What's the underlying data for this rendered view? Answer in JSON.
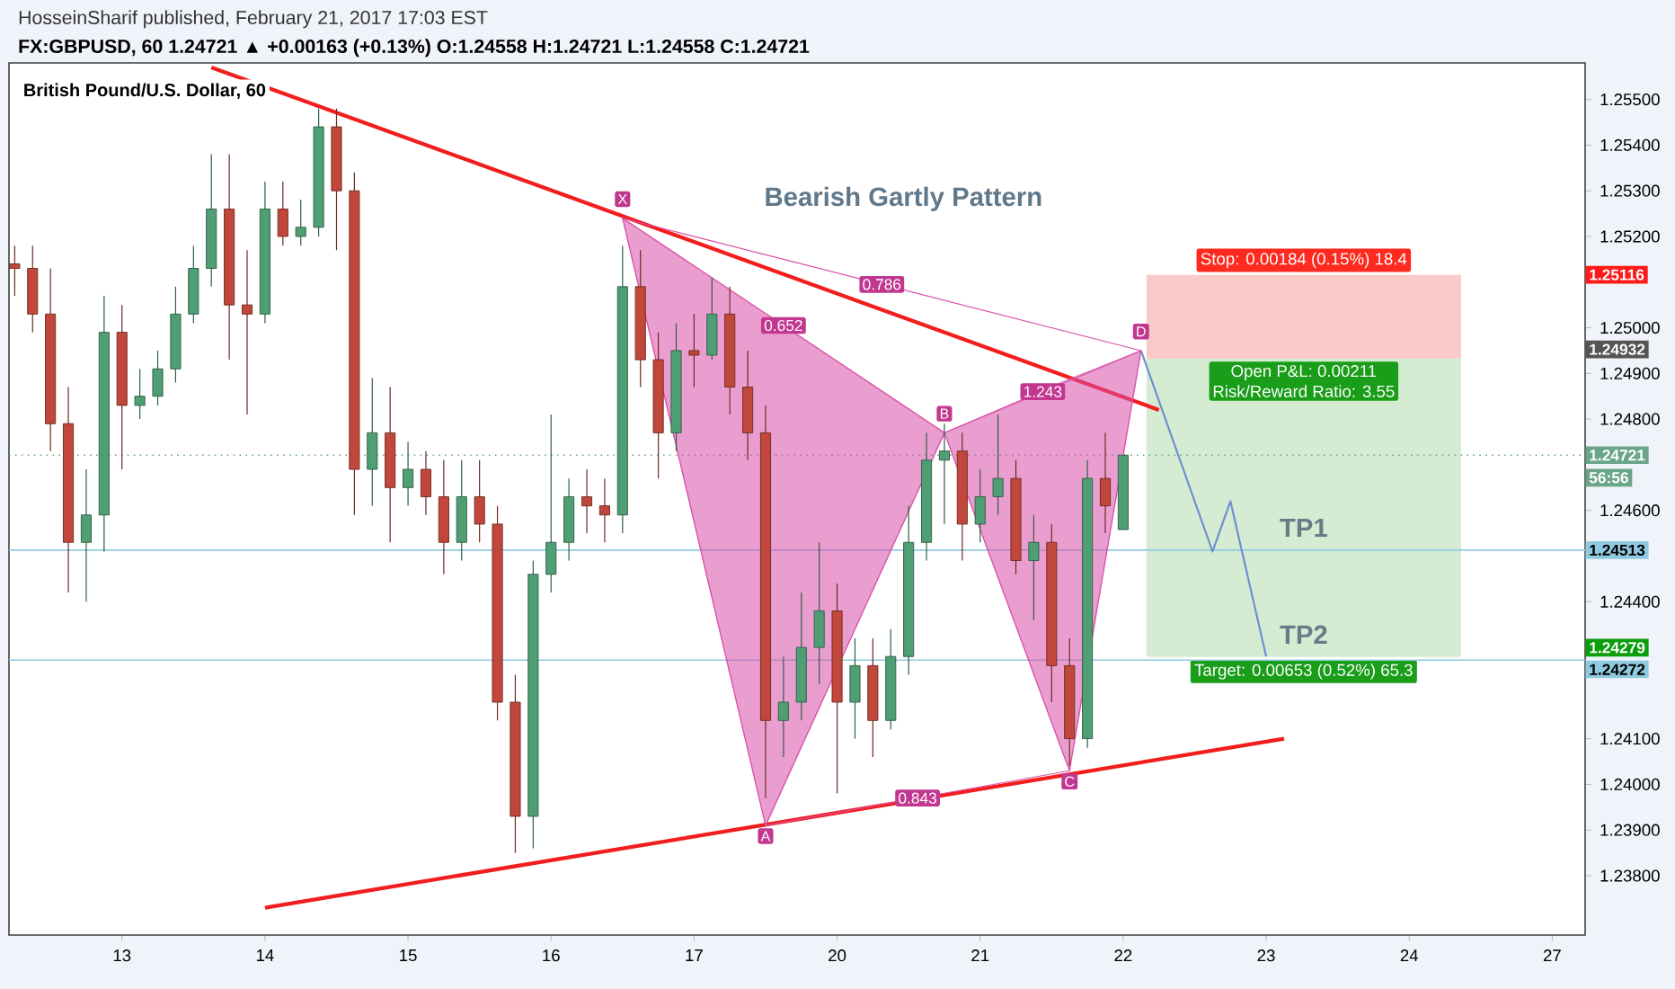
{
  "chart_data": {
    "type": "candlestick",
    "title": "British Pound/U.S. Dollar, 60",
    "subtitle": "FX:GBPUSD, 60 1.24721 ▲ +0.00163 (+0.13%) O:1.24558 H:1.24721 L:1.24558 C:1.24721",
    "categories": [
      null,
      null,
      null,
      null,
      null,
      null,
      "13",
      null,
      null,
      null,
      null,
      null,
      null,
      null,
      "14",
      null,
      null,
      null,
      null,
      null,
      null,
      null,
      "15",
      null,
      null,
      null,
      null,
      null,
      null,
      null,
      "16",
      null,
      null,
      null,
      null,
      null,
      null,
      null,
      "17",
      null,
      null,
      null,
      null,
      null,
      null,
      null,
      "20",
      null,
      null,
      null,
      null,
      null,
      null,
      null,
      "21",
      null,
      null,
      null,
      null,
      null,
      null,
      null,
      "22",
      null,
      null,
      null,
      null,
      null,
      null,
      null,
      "23",
      null,
      null,
      null,
      null,
      null,
      null,
      null,
      "24",
      null,
      null,
      null,
      null,
      null,
      null,
      null,
      "27"
    ],
    "ohlc": [
      [
        1.2514,
        1.2518,
        1.2507,
        1.2513
      ],
      [
        1.2513,
        1.2518,
        1.2499,
        1.2503
      ],
      [
        1.2503,
        1.2513,
        1.2473,
        1.2479
      ],
      [
        1.2479,
        1.2487,
        1.2442,
        1.2453
      ],
      [
        1.2453,
        1.2469,
        1.244,
        1.2459
      ],
      [
        1.2459,
        1.2507,
        1.2451,
        1.2499
      ],
      [
        1.2499,
        1.2505,
        1.2469,
        1.2483
      ],
      [
        1.2483,
        1.2491,
        1.248,
        1.2485
      ],
      [
        1.2485,
        1.2495,
        1.2483,
        1.2491
      ],
      [
        1.2491,
        1.2509,
        1.2488,
        1.2503
      ],
      [
        1.2503,
        1.2518,
        1.2501,
        1.2513
      ],
      [
        1.2513,
        1.2538,
        1.2509,
        1.2526
      ],
      [
        1.2526,
        1.2538,
        1.2493,
        1.2505
      ],
      [
        1.2505,
        1.2517,
        1.2481,
        1.2503
      ],
      [
        1.2503,
        1.2532,
        1.2501,
        1.2526
      ],
      [
        1.2526,
        1.2532,
        1.2518,
        1.252
      ],
      [
        1.252,
        1.2528,
        1.2518,
        1.2522
      ],
      [
        1.2522,
        1.2548,
        1.252,
        1.2544
      ],
      [
        1.2544,
        1.2548,
        1.2517,
        1.253
      ],
      [
        1.253,
        1.2534,
        1.2459,
        1.2469
      ],
      [
        1.2469,
        1.2489,
        1.2461,
        1.2477
      ],
      [
        1.2477,
        1.2487,
        1.2453,
        1.2465
      ],
      [
        1.2465,
        1.2475,
        1.2461,
        1.2469
      ],
      [
        1.2469,
        1.2473,
        1.2459,
        1.2463
      ],
      [
        1.2463,
        1.2471,
        1.2446,
        1.2453
      ],
      [
        1.2453,
        1.2471,
        1.2449,
        1.2463
      ],
      [
        1.2463,
        1.2471,
        1.2453,
        1.2457
      ],
      [
        1.2457,
        1.2461,
        1.2414,
        1.2418
      ],
      [
        1.2418,
        1.2424,
        1.2385,
        1.2393
      ],
      [
        1.2393,
        1.2449,
        1.2386,
        1.2446
      ],
      [
        1.2446,
        1.2481,
        1.2442,
        1.2453
      ],
      [
        1.2453,
        1.2467,
        1.2449,
        1.2463
      ],
      [
        1.2463,
        1.2469,
        1.2455,
        1.2461
      ],
      [
        1.2461,
        1.2467,
        1.2453,
        1.2459
      ],
      [
        1.2459,
        1.2518,
        1.2455,
        1.2509
      ],
      [
        1.2509,
        1.2517,
        1.2487,
        1.2493
      ],
      [
        1.2493,
        1.2499,
        1.2467,
        1.2477
      ],
      [
        1.2477,
        1.2501,
        1.2473,
        1.2495
      ],
      [
        1.2495,
        1.2503,
        1.2487,
        1.2494
      ],
      [
        1.2494,
        1.2511,
        1.2493,
        1.2503
      ],
      [
        1.2503,
        1.2509,
        1.2481,
        1.2487
      ],
      [
        1.2487,
        1.2495,
        1.2471,
        1.2477
      ],
      [
        1.2477,
        1.2483,
        1.2397,
        1.2414
      ],
      [
        1.2414,
        1.2428,
        1.2406,
        1.2418
      ],
      [
        1.2418,
        1.2442,
        1.2414,
        1.243
      ],
      [
        1.243,
        1.2453,
        1.2422,
        1.2438
      ],
      [
        1.2438,
        1.2444,
        1.2398,
        1.2418
      ],
      [
        1.2418,
        1.2432,
        1.241,
        1.2426
      ],
      [
        1.2426,
        1.2432,
        1.2406,
        1.2414
      ],
      [
        1.2414,
        1.2434,
        1.2412,
        1.2428
      ],
      [
        1.2428,
        1.2461,
        1.2424,
        1.2453
      ],
      [
        1.2453,
        1.2477,
        1.2449,
        1.2471
      ],
      [
        1.2471,
        1.2479,
        1.2457,
        1.2473
      ],
      [
        1.2473,
        1.2477,
        1.2449,
        1.2457
      ],
      [
        1.2457,
        1.2469,
        1.2453,
        1.2463
      ],
      [
        1.2463,
        1.2481,
        1.2459,
        1.2467
      ],
      [
        1.2467,
        1.2471,
        1.2446,
        1.2449
      ],
      [
        1.2449,
        1.2459,
        1.2436,
        1.2453
      ],
      [
        1.2453,
        1.2457,
        1.2418,
        1.2426
      ],
      [
        1.2426,
        1.2432,
        1.2404,
        1.241
      ],
      [
        1.241,
        1.2471,
        1.2408,
        1.2467
      ],
      [
        1.2467,
        1.2477,
        1.2455,
        1.2461
      ],
      [
        1.24558,
        1.24721,
        1.24558,
        1.24721
      ],
      null,
      null,
      null,
      null,
      null,
      null,
      null,
      null,
      null,
      null,
      null,
      null,
      null,
      null,
      null,
      null,
      null,
      null,
      null,
      null,
      null,
      null,
      null,
      null
    ],
    "series": [
      {
        "type": "line",
        "color": "#d94fa8",
        "values": [
          null,
          null,
          null,
          null,
          null,
          null,
          null,
          null,
          null,
          null,
          null,
          null,
          null,
          null,
          null,
          null,
          null,
          null,
          null,
          null,
          null,
          null,
          null,
          null,
          null,
          null,
          null,
          null,
          null,
          null,
          null,
          null,
          null,
          null,
          1.2524,
          null,
          null,
          null,
          null,
          null,
          null,
          null,
          1.2391,
          null,
          null,
          null,
          null,
          null,
          null,
          null,
          null,
          null,
          1.2477,
          null,
          null,
          null,
          null,
          null,
          null,
          1.2403,
          null,
          null,
          null,
          1.2495,
          null,
          null,
          null,
          null,
          null,
          null,
          null,
          null,
          null,
          null,
          null,
          null,
          null,
          null,
          null,
          null,
          null,
          null,
          null,
          null,
          null,
          null,
          null
        ],
        "lower": [
          null,
          null,
          null,
          null,
          null,
          null,
          null,
          null,
          null,
          null,
          null,
          null,
          null,
          null,
          null,
          null,
          null,
          null,
          null,
          null,
          null,
          null,
          null,
          null,
          null,
          null,
          null,
          null,
          null,
          null,
          null,
          null,
          null,
          null,
          1.2524,
          null,
          null,
          null,
          null,
          null,
          null,
          null,
          1.2391,
          null,
          null,
          null,
          null,
          null,
          null,
          null,
          null,
          null,
          1.2477,
          null,
          null,
          null,
          null,
          null,
          null,
          1.2403,
          null,
          null,
          null,
          1.2495,
          null,
          null,
          null,
          null,
          null,
          null,
          null,
          null,
          null,
          null,
          null,
          null,
          null,
          null,
          null,
          null,
          null,
          null,
          null,
          null,
          null,
          null,
          null
        ],
        "upper": [
          null,
          null,
          null,
          null,
          null,
          null,
          null,
          null,
          null,
          null,
          null,
          null,
          null,
          null,
          null,
          null,
          null,
          null,
          null,
          null,
          null,
          null,
          null,
          null,
          null,
          null,
          null,
          null,
          null,
          null,
          null,
          null,
          null,
          null,
          1.2524,
          null,
          null,
          null,
          null,
          null,
          null,
          null,
          1.2503,
          null,
          null,
          null,
          null,
          null,
          null,
          null,
          null,
          null,
          1.2477,
          null,
          null,
          null,
          null,
          null,
          null,
          1.2489,
          null,
          null,
          null,
          1.2495,
          null,
          null,
          null,
          null,
          null,
          null,
          null,
          null,
          null,
          null,
          null,
          null,
          null,
          null,
          null,
          null,
          null,
          null,
          null,
          null,
          null,
          null,
          null
        ]
      },
      {
        "type": "line",
        "color": "#d94fa8",
        "values": [
          null,
          null,
          null,
          null,
          null,
          null,
          null,
          null,
          null,
          null,
          null,
          null,
          null,
          null,
          null,
          null,
          null,
          null,
          null,
          null,
          null,
          null,
          null,
          null,
          null,
          null,
          null,
          null,
          null,
          null,
          null,
          null,
          null,
          null,
          1.2524,
          null,
          null,
          null,
          null,
          null,
          null,
          null,
          null,
          null,
          null,
          null,
          null,
          null,
          null,
          null,
          null,
          null,
          1.2477,
          null,
          null,
          null,
          null,
          null,
          null,
          null,
          null,
          null,
          null,
          1.2495,
          null,
          null,
          null,
          null,
          null,
          null,
          null,
          null,
          null,
          null,
          null,
          null,
          null,
          null,
          null,
          null,
          null,
          null,
          null,
          null,
          null,
          null,
          null
        ]
      },
      {
        "type": "line",
        "color": "#d94fa8",
        "values": [
          null,
          null,
          null,
          null,
          null,
          null,
          null,
          null,
          null,
          null,
          null,
          null,
          null,
          null,
          null,
          null,
          null,
          null,
          null,
          null,
          null,
          null,
          null,
          null,
          null,
          null,
          null,
          null,
          null,
          null,
          null,
          null,
          null,
          null,
          1.2524,
          null,
          null,
          null,
          null,
          null,
          null,
          null,
          null,
          null,
          null,
          null,
          null,
          null,
          null,
          null,
          null,
          null,
          null,
          null,
          null,
          null,
          null,
          null,
          null,
          null,
          null,
          null,
          null,
          1.2495,
          null,
          null,
          null,
          null,
          null,
          null,
          null,
          null,
          null,
          null,
          null,
          null,
          null,
          null,
          null,
          null,
          null,
          null,
          null,
          null,
          null,
          null,
          null
        ]
      },
      {
        "type": "line",
        "color": "#d94fa8",
        "values": [
          null,
          null,
          null,
          null,
          null,
          null,
          null,
          null,
          null,
          null,
          null,
          null,
          null,
          null,
          null,
          null,
          null,
          null,
          null,
          null,
          null,
          null,
          null,
          null,
          null,
          null,
          null,
          null,
          null,
          null,
          null,
          null,
          null,
          null,
          null,
          null,
          null,
          null,
          null,
          null,
          null,
          null,
          1.2391,
          null,
          null,
          null,
          null,
          null,
          null,
          null,
          null,
          null,
          null,
          null,
          null,
          null,
          null,
          null,
          null,
          1.2403,
          null,
          null,
          null,
          null,
          null,
          null,
          null,
          null,
          null,
          null,
          null,
          null,
          null,
          null,
          null,
          null,
          null,
          null,
          null,
          null,
          null,
          null,
          null,
          null,
          null,
          null,
          null
        ]
      },
      {
        "type": "line",
        "color": "#f21d1d",
        "values": [
          null,
          null,
          null,
          null,
          null,
          null,
          null,
          null,
          null,
          null,
          null,
          1.2557,
          null,
          null,
          null,
          null,
          null,
          null,
          null,
          null,
          null,
          null,
          null,
          null,
          null,
          null,
          null,
          null,
          null,
          null,
          null,
          null,
          null,
          null,
          null,
          null,
          null,
          null,
          null,
          null,
          null,
          null,
          null,
          null,
          null,
          null,
          null,
          null,
          null,
          null,
          null,
          null,
          null,
          null,
          null,
          null,
          null,
          null,
          null,
          null,
          null,
          null,
          null,
          null,
          1.2482,
          null,
          null,
          null,
          null,
          null,
          null,
          null,
          null,
          null,
          null,
          null,
          null,
          null,
          null,
          null,
          null,
          null,
          null,
          null,
          null,
          null,
          null
        ]
      },
      {
        "type": "line",
        "color": "#f21d1d",
        "values": [
          null,
          null,
          null,
          null,
          null,
          null,
          null,
          null,
          null,
          null,
          null,
          null,
          null,
          null,
          1.2373,
          null,
          null,
          null,
          null,
          null,
          null,
          null,
          null,
          null,
          null,
          null,
          null,
          null,
          null,
          null,
          null,
          null,
          null,
          null,
          null,
          null,
          null,
          null,
          null,
          null,
          null,
          null,
          null,
          null,
          null,
          null,
          null,
          null,
          null,
          null,
          null,
          null,
          null,
          null,
          null,
          null,
          null,
          null,
          null,
          null,
          null,
          null,
          null,
          null,
          null,
          null,
          null,
          null,
          null,
          null,
          null,
          1.241,
          null,
          null,
          null,
          null,
          null,
          null,
          null,
          null,
          null,
          null,
          null,
          null,
          null,
          null,
          null
        ]
      },
      {
        "type": "line",
        "color": "#6d8fcf",
        "values": [
          null,
          null,
          null,
          null,
          null,
          null,
          null,
          null,
          null,
          null,
          null,
          null,
          null,
          null,
          null,
          null,
          null,
          null,
          null,
          null,
          null,
          null,
          null,
          null,
          null,
          null,
          null,
          null,
          null,
          null,
          null,
          null,
          null,
          null,
          null,
          null,
          null,
          null,
          null,
          null,
          null,
          null,
          null,
          null,
          null,
          null,
          null,
          null,
          null,
          null,
          null,
          null,
          null,
          null,
          null,
          null,
          null,
          null,
          null,
          null,
          null,
          null,
          null,
          1.2495,
          null,
          null,
          null,
          1.2451,
          1.2462,
          null,
          1.2428,
          null,
          null,
          null,
          null,
          null,
          null,
          null,
          null,
          null,
          null,
          null,
          null,
          null,
          null,
          null,
          null
        ]
      }
    ],
    "annotations": [
      "HosseinSharif published, February 21, 2017 17:03 EST",
      "Bearish Gartly Pattern",
      {
        "text": "X",
        "y": 1.2524
      },
      {
        "text": "A",
        "y": 1.2391
      },
      {
        "text": "B",
        "y": 1.2477
      },
      {
        "text": "C",
        "y": 1.2403
      },
      {
        "text": "D",
        "y": 1.2495
      },
      "0.786",
      "0.652",
      "1.243",
      "0.843",
      "TP1",
      "TP2",
      "Open P&L: 0.00211",
      "Risk/Reward Ratio: 3.55",
      "1.25116",
      "1.24932",
      "1.24279",
      "56:56"
    ],
    "ref_lines": [
      {
        "axis": "y",
        "value": 1.24721,
        "label": "1.24721",
        "color": "#6aa58a",
        "line_style": "dotted"
      },
      {
        "axis": "y",
        "value": 1.24513,
        "label": "1.24513",
        "color": "#8fcbe0",
        "line_style": "solid"
      },
      {
        "axis": "y",
        "value": 1.24272,
        "label": "1.24272",
        "color": "#8fcbe0",
        "line_style": "solid"
      }
    ],
    "bands": [
      {
        "axis": "y",
        "from": 1.24932,
        "to": 1.25116,
        "label": "Stop: 0.00184 (0.15%) 18.4",
        "color": "#f9cbc8"
      },
      {
        "axis": "y",
        "from": 1.24279,
        "to": 1.24932,
        "label": "Target: 0.00653 (0.52%) 65.3",
        "color": "#d4ecd2"
      }
    ],
    "ylim": [
      1.2367,
      1.2558
    ],
    "yticks": [
      {
        "value": 1.238,
        "label": "1.23800"
      },
      {
        "value": 1.239,
        "label": "1.23900"
      },
      {
        "value": 1.24,
        "label": "1.24000"
      },
      {
        "value": 1.241,
        "label": "1.24100"
      },
      {
        "value": 1.244,
        "label": "1.24400"
      },
      {
        "value": 1.246,
        "label": "1.24600"
      },
      {
        "value": 1.248,
        "label": "1.24800"
      },
      {
        "value": 1.249,
        "label": "1.24900"
      },
      {
        "value": 1.25,
        "label": "1.25000"
      },
      {
        "value": 1.252,
        "label": "1.25200"
      },
      {
        "value": 1.253,
        "label": "1.25300"
      },
      {
        "value": 1.254,
        "label": "1.25400"
      },
      {
        "value": 1.255,
        "label": "1.25500"
      }
    ]
  }
}
